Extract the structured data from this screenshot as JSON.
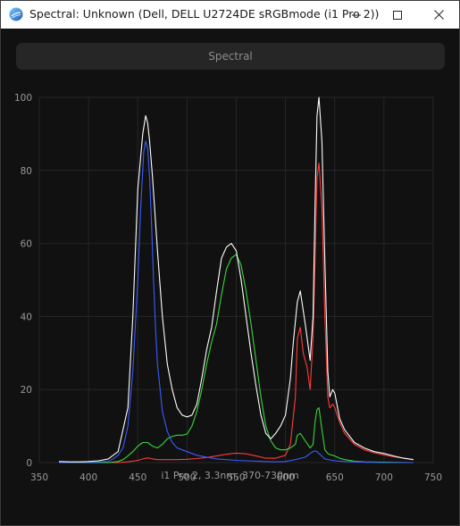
{
  "window": {
    "title": "Spectral: Unknown (Dell, DELL U2724DE sRGBmode (i1 Pro 2))",
    "icon": "color-wheel-icon"
  },
  "controls": {
    "minimize": "minimize-icon",
    "maximize": "maximize-icon",
    "close": "close-icon"
  },
  "toolbar": {
    "button_label": "Spectral"
  },
  "caption": "i1 Pro 2, 3.3nm, 370-730nm",
  "chart_data": {
    "type": "line",
    "xlim": [
      350,
      750
    ],
    "ylim": [
      0,
      100
    ],
    "x_ticks": [
      "350",
      "400",
      "450",
      "500",
      "550",
      "600",
      "650",
      "700",
      "750"
    ],
    "y_ticks": [
      "0",
      "20",
      "40",
      "60",
      "80",
      "100"
    ],
    "grid": true,
    "legend": "none",
    "series": [
      {
        "color": "#ffffff",
        "x": [
          370,
          380,
          390,
          400,
          410,
          420,
          430,
          440,
          445,
          450,
          455,
          458,
          460,
          462,
          465,
          470,
          475,
          480,
          485,
          490,
          495,
          500,
          505,
          510,
          515,
          520,
          525,
          530,
          535,
          540,
          545,
          550,
          555,
          560,
          565,
          570,
          575,
          580,
          585,
          590,
          595,
          600,
          605,
          608,
          612,
          615,
          620,
          625,
          628,
          630,
          632,
          634,
          637,
          640,
          643,
          645,
          648,
          650,
          655,
          660,
          670,
          680,
          690,
          700,
          710,
          720,
          730
        ],
        "y": [
          0.3,
          0.2,
          0.2,
          0.3,
          0.5,
          1,
          3,
          15,
          40,
          75,
          90,
          95,
          93,
          88,
          78,
          58,
          40,
          27,
          20,
          15,
          13,
          12.5,
          13,
          16,
          23,
          31,
          37,
          47,
          56,
          59,
          60,
          58,
          50,
          40,
          30,
          21,
          13,
          8,
          6.5,
          8,
          10,
          13,
          23,
          33,
          44,
          47,
          38,
          28,
          40,
          70,
          95,
          100,
          88,
          55,
          25,
          18,
          20,
          19,
          12,
          9,
          5.5,
          4,
          3,
          2.5,
          1.8,
          1.2,
          0.8
        ]
      },
      {
        "color": "#ff3b3b",
        "x": [
          370,
          400,
          430,
          440,
          450,
          455,
          460,
          465,
          470,
          480,
          490,
          500,
          510,
          520,
          530,
          540,
          550,
          560,
          570,
          580,
          590,
          600,
          605,
          610,
          612,
          615,
          618,
          620,
          622,
          625,
          628,
          630,
          632,
          634,
          637,
          640,
          643,
          645,
          648,
          650,
          655,
          660,
          670,
          680,
          690,
          700,
          710,
          720,
          730
        ],
        "y": [
          0,
          0,
          0,
          0.2,
          0.6,
          1,
          1.3,
          1,
          0.8,
          0.8,
          0.8,
          0.9,
          1.1,
          1.4,
          1.8,
          2.3,
          2.6,
          2.4,
          1.8,
          1.2,
          1.2,
          2,
          5,
          18,
          34,
          37,
          30,
          28,
          26,
          20,
          34,
          55,
          78,
          82,
          70,
          40,
          18,
          15,
          16,
          15,
          11,
          8,
          5,
          3.5,
          2.7,
          2.1,
          1.6,
          1.2,
          0.8
        ]
      },
      {
        "color": "#39d639",
        "x": [
          370,
          420,
          430,
          435,
          440,
          445,
          450,
          455,
          460,
          465,
          470,
          475,
          480,
          485,
          490,
          495,
          500,
          505,
          510,
          515,
          520,
          525,
          530,
          535,
          540,
          545,
          550,
          555,
          560,
          565,
          570,
          575,
          580,
          585,
          590,
          595,
          600,
          605,
          610,
          612,
          615,
          620,
          625,
          628,
          630,
          632,
          634,
          637,
          640,
          643,
          645,
          648,
          650,
          655,
          660,
          670,
          680,
          700,
          730
        ],
        "y": [
          0,
          0,
          0.3,
          0.8,
          1.8,
          3,
          4.5,
          5.5,
          5.5,
          4.5,
          4,
          5,
          6.5,
          7.2,
          7.5,
          7.5,
          7.8,
          10,
          14,
          20,
          27,
          33,
          38,
          46,
          53,
          56,
          57,
          54,
          47,
          38,
          28,
          18,
          10,
          6,
          4,
          3.5,
          3.5,
          4,
          5,
          7.5,
          8,
          6,
          4,
          5,
          11,
          14.5,
          15,
          9,
          3.5,
          2.5,
          2.2,
          2,
          1.8,
          1.2,
          0.8,
          0.4,
          0.2,
          0.1,
          0
        ]
      },
      {
        "color": "#3b5cff",
        "x": [
          370,
          400,
          420,
          425,
          430,
          435,
          440,
          445,
          450,
          453,
          456,
          458,
          460,
          462,
          464,
          466,
          468,
          470,
          475,
          480,
          485,
          490,
          495,
          500,
          505,
          510,
          520,
          530,
          540,
          550,
          560,
          570,
          580,
          590,
          600,
          610,
          620,
          625,
          628,
          630,
          632,
          634,
          636,
          640,
          650,
          660,
          680,
          700,
          730
        ],
        "y": [
          0,
          0.1,
          0.3,
          1,
          2,
          4,
          10,
          25,
          50,
          70,
          85,
          88,
          86,
          78,
          65,
          50,
          37,
          27,
          14,
          8.5,
          5.5,
          4,
          3.5,
          3,
          2.5,
          2,
          1.5,
          1,
          0.8,
          0.6,
          0.5,
          0.4,
          0.3,
          0.2,
          0.3,
          0.8,
          1.5,
          2.5,
          3,
          3.2,
          3,
          2.5,
          2,
          1,
          0.5,
          0.3,
          0.1,
          0,
          0
        ]
      }
    ]
  }
}
